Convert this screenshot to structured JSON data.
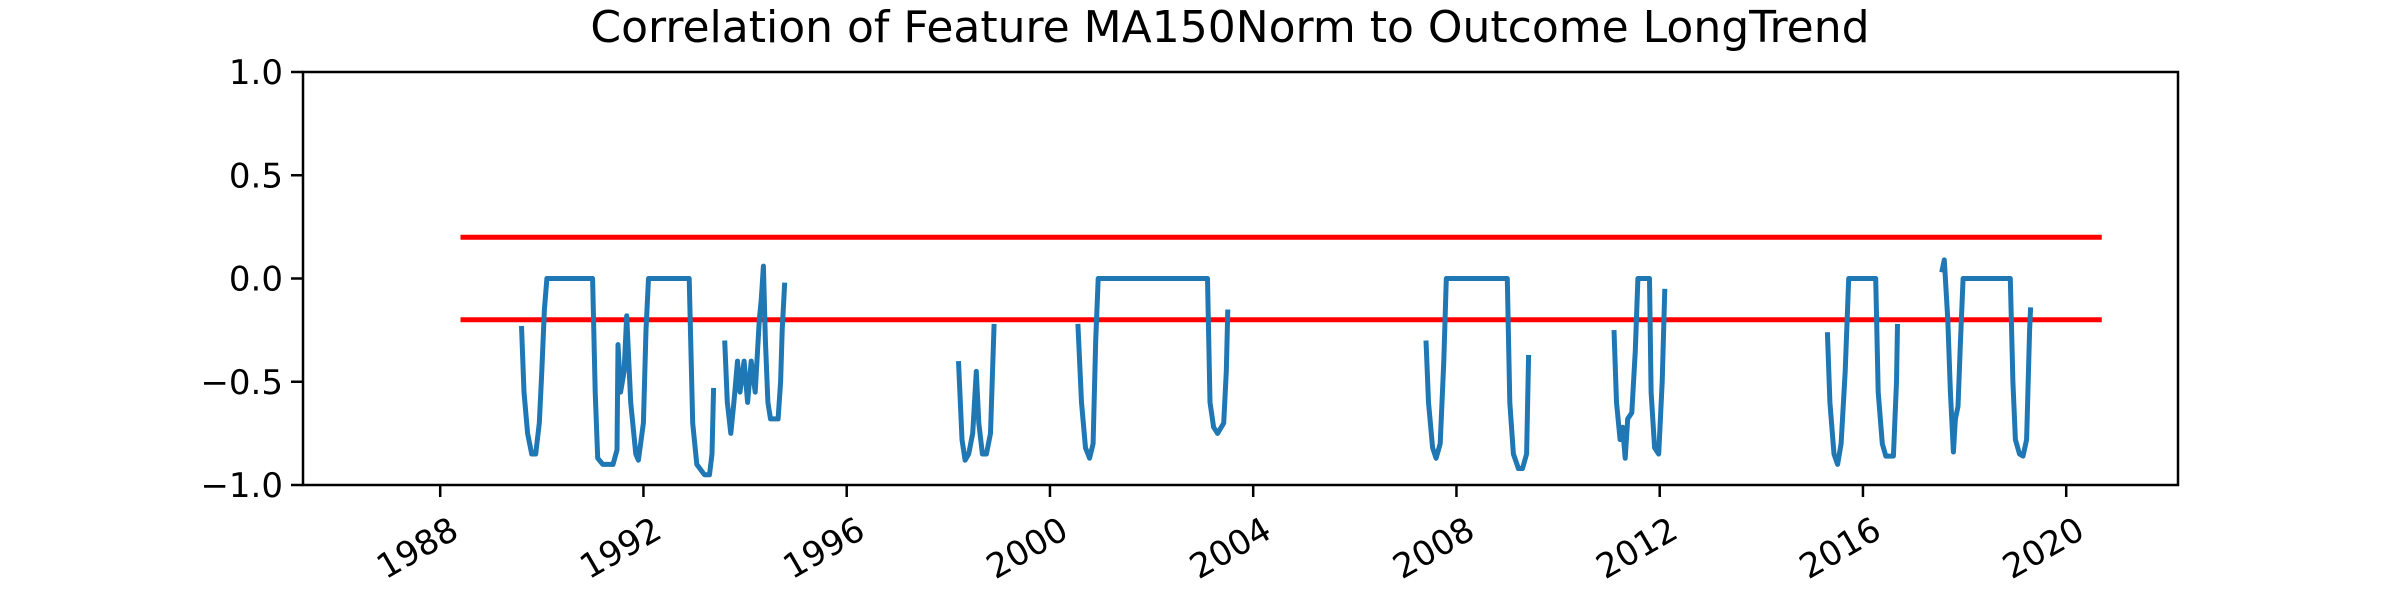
{
  "chart_data": {
    "type": "line",
    "title": "Correlation of Feature MA150Norm to Outcome LongTrend",
    "xlabel": "",
    "ylabel": "",
    "xlim": [
      1985.3,
      2022.2
    ],
    "ylim": [
      -1.0,
      1.0
    ],
    "x_ticks": [
      1988,
      1992,
      1996,
      2000,
      2004,
      2008,
      2012,
      2016,
      2020
    ],
    "x_tick_labels": [
      "1988",
      "1992",
      "1996",
      "2000",
      "2004",
      "2008",
      "2012",
      "2016",
      "2020"
    ],
    "y_ticks": [
      1.0,
      0.5,
      0.0,
      -0.5,
      -1.0
    ],
    "y_tick_labels": [
      "1.0",
      "0.5",
      "0.0",
      "−0.5",
      "−1.0"
    ],
    "grid": false,
    "series": [
      {
        "color": "#1f77b4",
        "segments": [
          [
            [
              1989.6,
              -0.23
            ],
            [
              1989.65,
              -0.55
            ],
            [
              1989.72,
              -0.75
            ],
            [
              1989.8,
              -0.85
            ],
            [
              1989.88,
              -0.85
            ],
            [
              1989.95,
              -0.7
            ],
            [
              1990.0,
              -0.45
            ],
            [
              1990.05,
              -0.15
            ],
            [
              1990.1,
              0.0
            ],
            [
              1991.0,
              0.0
            ],
            [
              1991.05,
              -0.55
            ],
            [
              1991.1,
              -0.87
            ],
            [
              1991.2,
              -0.9
            ],
            [
              1991.4,
              -0.9
            ],
            [
              1991.48,
              -0.83
            ],
            [
              1991.5,
              -0.32
            ],
            [
              1991.55,
              -0.55
            ],
            [
              1991.62,
              -0.45
            ],
            [
              1991.67,
              -0.18
            ],
            [
              1991.75,
              -0.6
            ],
            [
              1991.85,
              -0.85
            ],
            [
              1991.9,
              -0.88
            ],
            [
              1992.0,
              -0.7
            ],
            [
              1992.05,
              -0.25
            ],
            [
              1992.1,
              0.0
            ],
            [
              1992.9,
              0.0
            ],
            [
              1992.97,
              -0.7
            ],
            [
              1993.05,
              -0.9
            ],
            [
              1993.2,
              -0.95
            ],
            [
              1993.3,
              -0.95
            ],
            [
              1993.35,
              -0.85
            ],
            [
              1993.38,
              -0.53
            ]
          ],
          [
            [
              1993.6,
              -0.3
            ],
            [
              1993.65,
              -0.6
            ],
            [
              1993.72,
              -0.75
            ],
            [
              1993.78,
              -0.6
            ],
            [
              1993.85,
              -0.4
            ],
            [
              1993.9,
              -0.55
            ],
            [
              1993.98,
              -0.4
            ],
            [
              1994.05,
              -0.6
            ],
            [
              1994.12,
              -0.4
            ],
            [
              1994.2,
              -0.55
            ],
            [
              1994.28,
              -0.2
            ],
            [
              1994.32,
              -0.1
            ],
            [
              1994.36,
              0.06
            ],
            [
              1994.4,
              -0.3
            ],
            [
              1994.45,
              -0.6
            ],
            [
              1994.5,
              -0.68
            ],
            [
              1994.65,
              -0.68
            ],
            [
              1994.7,
              -0.5
            ],
            [
              1994.73,
              -0.25
            ],
            [
              1994.78,
              -0.02
            ]
          ],
          [
            [
              1998.2,
              -0.4
            ],
            [
              1998.27,
              -0.78
            ],
            [
              1998.33,
              -0.88
            ],
            [
              1998.4,
              -0.85
            ],
            [
              1998.48,
              -0.75
            ],
            [
              1998.55,
              -0.45
            ],
            [
              1998.6,
              -0.7
            ],
            [
              1998.67,
              -0.85
            ],
            [
              1998.75,
              -0.85
            ],
            [
              1998.83,
              -0.75
            ],
            [
              1998.9,
              -0.22
            ]
          ],
          [
            [
              2000.55,
              -0.22
            ],
            [
              2000.62,
              -0.6
            ],
            [
              2000.7,
              -0.82
            ],
            [
              2000.78,
              -0.87
            ],
            [
              2000.85,
              -0.8
            ],
            [
              2000.9,
              -0.3
            ],
            [
              2000.95,
              0.0
            ],
            [
              2003.1,
              0.0
            ],
            [
              2003.15,
              -0.6
            ],
            [
              2003.22,
              -0.72
            ],
            [
              2003.3,
              -0.75
            ],
            [
              2003.42,
              -0.7
            ],
            [
              2003.47,
              -0.45
            ],
            [
              2003.5,
              -0.15
            ]
          ],
          [
            [
              2007.4,
              -0.3
            ],
            [
              2007.45,
              -0.6
            ],
            [
              2007.53,
              -0.82
            ],
            [
              2007.6,
              -0.87
            ],
            [
              2007.68,
              -0.8
            ],
            [
              2007.75,
              -0.4
            ],
            [
              2007.8,
              0.0
            ],
            [
              2009.0,
              0.0
            ],
            [
              2009.05,
              -0.6
            ],
            [
              2009.12,
              -0.85
            ],
            [
              2009.22,
              -0.92
            ],
            [
              2009.3,
              -0.92
            ],
            [
              2009.38,
              -0.85
            ],
            [
              2009.42,
              -0.37
            ]
          ],
          [
            [
              2011.1,
              -0.25
            ],
            [
              2011.15,
              -0.6
            ],
            [
              2011.22,
              -0.78
            ],
            [
              2011.27,
              -0.72
            ],
            [
              2011.32,
              -0.87
            ],
            [
              2011.37,
              -0.68
            ],
            [
              2011.45,
              -0.65
            ],
            [
              2011.52,
              -0.35
            ],
            [
              2011.57,
              0.0
            ],
            [
              2011.8,
              0.0
            ],
            [
              2011.83,
              -0.55
            ],
            [
              2011.9,
              -0.82
            ],
            [
              2011.98,
              -0.85
            ],
            [
              2012.05,
              -0.5
            ],
            [
              2012.1,
              -0.05
            ]
          ],
          [
            [
              2015.3,
              -0.26
            ],
            [
              2015.35,
              -0.6
            ],
            [
              2015.43,
              -0.85
            ],
            [
              2015.5,
              -0.9
            ],
            [
              2015.57,
              -0.8
            ],
            [
              2015.65,
              -0.45
            ],
            [
              2015.72,
              0.0
            ],
            [
              2016.25,
              0.0
            ],
            [
              2016.3,
              -0.55
            ],
            [
              2016.38,
              -0.8
            ],
            [
              2016.45,
              -0.86
            ],
            [
              2016.6,
              -0.86
            ],
            [
              2016.66,
              -0.5
            ],
            [
              2016.68,
              -0.22
            ]
          ],
          [
            [
              2017.55,
              0.03
            ],
            [
              2017.6,
              0.09
            ],
            [
              2017.67,
              -0.2
            ],
            [
              2017.72,
              -0.55
            ],
            [
              2017.78,
              -0.84
            ],
            [
              2017.82,
              -0.68
            ],
            [
              2017.87,
              -0.62
            ],
            [
              2017.92,
              -0.3
            ],
            [
              2017.97,
              0.0
            ],
            [
              2018.9,
              0.0
            ],
            [
              2018.95,
              -0.5
            ],
            [
              2019.0,
              -0.78
            ],
            [
              2019.08,
              -0.85
            ],
            [
              2019.15,
              -0.86
            ],
            [
              2019.22,
              -0.78
            ],
            [
              2019.28,
              -0.25
            ],
            [
              2019.3,
              -0.14
            ]
          ]
        ]
      }
    ],
    "reference_lines": [
      {
        "y": 0.2,
        "x_range": [
          1988.4,
          2020.7
        ],
        "color": "#ff0000"
      },
      {
        "y": -0.2,
        "x_range": [
          1988.4,
          2020.7
        ],
        "color": "#ff0000"
      }
    ]
  }
}
